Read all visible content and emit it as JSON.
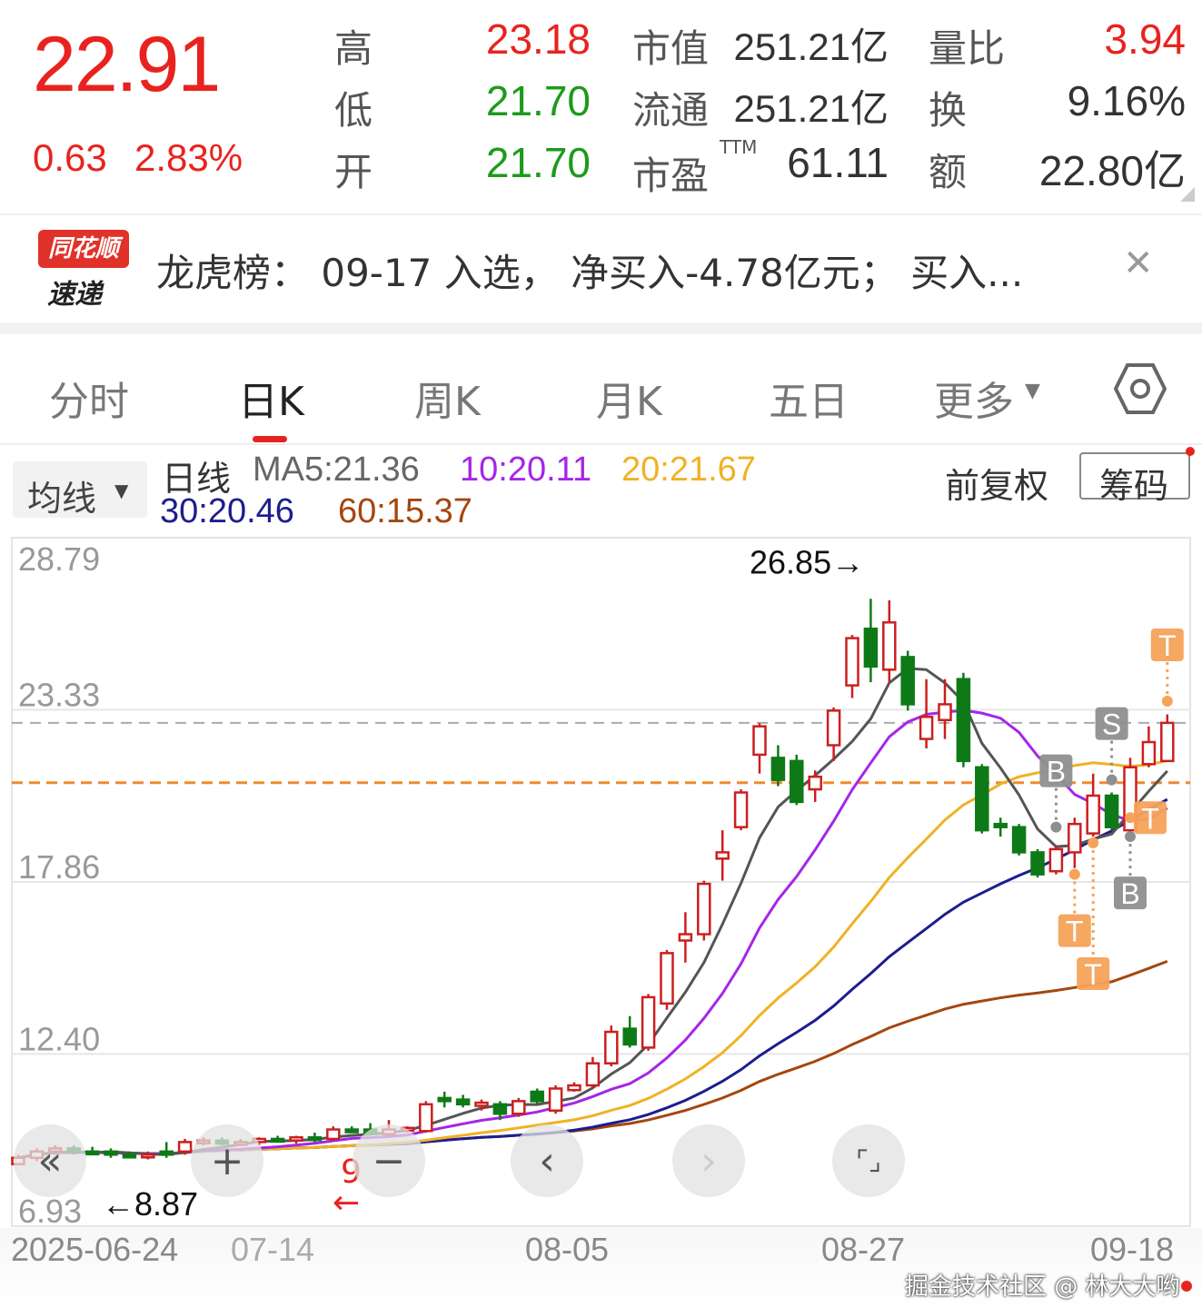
{
  "quote": {
    "price": "22.91",
    "change": "0.63",
    "change_pct": "2.83%",
    "stats": [
      {
        "label": "高",
        "value": "23.18",
        "color": "red"
      },
      {
        "label": "低",
        "value": "21.70",
        "color": "green"
      },
      {
        "label": "开",
        "value": "21.70",
        "color": "green"
      }
    ],
    "stats2": [
      {
        "label": "市值",
        "value": "251.21亿"
      },
      {
        "label": "流通",
        "value": "251.21亿"
      },
      {
        "label": "市盈",
        "sup": "TTM",
        "value": "61.11"
      }
    ],
    "stats3": [
      {
        "label": "量比",
        "value": "3.94",
        "color": "red"
      },
      {
        "label": "换",
        "value": "9.16%",
        "color": "dark"
      },
      {
        "label": "额",
        "value": "22.80亿",
        "color": "dark"
      }
    ]
  },
  "banner": {
    "logo_top": "同花顺",
    "logo_bottom": "速递",
    "text": "龙虎榜：  09-17 入选，  净买入-4.78亿元；  买入...",
    "close_icon": "close-icon"
  },
  "tabs": [
    {
      "label": "分时"
    },
    {
      "label": "日K",
      "active": true
    },
    {
      "label": "周K"
    },
    {
      "label": "月K"
    },
    {
      "label": "五日"
    },
    {
      "label": "更多"
    }
  ],
  "settings_icon": "hexagon-settings-icon",
  "legend": {
    "dropdown": "均线",
    "title": "日线",
    "ma5": "MA5:21.36",
    "ma10": "10:20.11",
    "ma20": "20:21.67",
    "ma30": "30:20.46",
    "ma60": "60:15.37",
    "adjust": "前复权",
    "chips": "筹码"
  },
  "colors": {
    "up": "#cc1f1f",
    "down": "#0e7a17",
    "ma5": "#555555",
    "ma10": "#a526e8",
    "ma20": "#f0b224",
    "ma30": "#1d1d8f",
    "ma60": "#a4470f",
    "accent": "#e8231f",
    "marker": "#f6a25a",
    "marker_gray": "#8f8f8f"
  },
  "chart_data": {
    "type": "candlestick",
    "y_ticks": [
      "28.79",
      "23.33",
      "17.86",
      "12.40",
      "6.93"
    ],
    "ylim": [
      6.93,
      28.79
    ],
    "x_ticks": [
      "2025-06-24",
      "07-14",
      "08-05",
      "08-27",
      "09-18"
    ],
    "max_label": "26.85→",
    "min_label": "←8.87",
    "current_price_line": 22.91,
    "cost_line": 21.01,
    "annotation": {
      "text": "9",
      "arrow": "←"
    },
    "candles": [
      [
        "06-24",
        8.9,
        9.2,
        8.87,
        9.1
      ],
      [
        "06-25",
        9.1,
        9.4,
        9.0,
        9.3
      ],
      [
        "06-26",
        9.3,
        9.5,
        9.2,
        9.4
      ],
      [
        "06-27",
        9.4,
        9.5,
        9.2,
        9.3
      ],
      [
        "06-30",
        9.3,
        9.45,
        9.2,
        9.25
      ],
      [
        "07-01",
        9.3,
        9.4,
        9.1,
        9.2
      ],
      [
        "07-02",
        9.2,
        9.3,
        9.1,
        9.15
      ],
      [
        "07-03",
        9.15,
        9.3,
        9.05,
        9.2
      ],
      [
        "07-04",
        9.3,
        9.6,
        9.1,
        9.2
      ],
      [
        "07-07",
        9.3,
        9.7,
        9.2,
        9.6
      ],
      [
        "07-08",
        9.6,
        9.75,
        9.5,
        9.65
      ],
      [
        "07-09",
        9.65,
        9.75,
        9.5,
        9.55
      ],
      [
        "07-10",
        9.55,
        9.7,
        9.5,
        9.6
      ],
      [
        "07-11",
        9.6,
        9.75,
        9.5,
        9.7
      ],
      [
        "07-14",
        9.7,
        9.8,
        9.6,
        9.65
      ],
      [
        "07-15",
        9.65,
        9.8,
        9.55,
        9.75
      ],
      [
        "07-16",
        9.75,
        9.9,
        9.6,
        9.7
      ],
      [
        "07-17",
        9.7,
        10.1,
        9.65,
        10.0
      ],
      [
        "07-18",
        10.0,
        10.1,
        9.9,
        9.95
      ],
      [
        "07-21",
        10.0,
        10.2,
        9.8,
        9.85
      ],
      [
        "07-22",
        9.85,
        10.3,
        9.8,
        10.0
      ],
      [
        "07-23",
        10.0,
        10.1,
        9.9,
        10.05
      ],
      [
        "07-24",
        9.95,
        10.9,
        9.9,
        10.8
      ],
      [
        "07-25",
        11.0,
        11.2,
        10.7,
        10.9
      ],
      [
        "07-28",
        10.95,
        11.1,
        10.7,
        10.8
      ],
      [
        "07-29",
        10.75,
        10.95,
        10.6,
        10.85
      ],
      [
        "07-30",
        10.8,
        10.9,
        10.3,
        10.5
      ],
      [
        "07-31",
        10.5,
        11.0,
        10.4,
        10.9
      ],
      [
        "08-01",
        11.2,
        11.3,
        10.8,
        10.9
      ],
      [
        "08-04",
        10.6,
        11.4,
        10.5,
        11.3
      ],
      [
        "08-05",
        11.25,
        11.5,
        11.2,
        11.4
      ],
      [
        "08-06",
        11.4,
        12.3,
        11.3,
        12.1
      ],
      [
        "08-07",
        12.1,
        13.3,
        12.0,
        13.1
      ],
      [
        "08-08",
        13.2,
        13.6,
        12.6,
        12.7
      ],
      [
        "08-11",
        12.6,
        14.3,
        12.5,
        14.2
      ],
      [
        "08-12",
        14.0,
        15.7,
        13.8,
        15.6
      ],
      [
        "08-13",
        16.0,
        16.9,
        15.3,
        16.2
      ],
      [
        "08-14",
        16.2,
        17.9,
        16.0,
        17.8
      ],
      [
        "08-15",
        18.6,
        19.5,
        17.9,
        18.8
      ],
      [
        "08-18",
        19.6,
        20.8,
        19.5,
        20.7
      ],
      [
        "08-19",
        21.9,
        22.9,
        21.3,
        22.8
      ],
      [
        "08-20",
        21.8,
        22.2,
        20.9,
        21.1
      ],
      [
        "08-21",
        21.7,
        21.9,
        20.3,
        20.4
      ],
      [
        "08-22",
        20.8,
        21.4,
        20.4,
        21.2
      ],
      [
        "08-25",
        22.2,
        23.4,
        21.7,
        23.3
      ],
      [
        "08-26",
        24.1,
        25.7,
        23.7,
        25.6
      ],
      [
        "08-27",
        25.9,
        26.85,
        24.2,
        24.7
      ],
      [
        "08-28",
        24.6,
        26.8,
        24.2,
        26.1
      ],
      [
        "08-29",
        25.0,
        25.2,
        23.3,
        23.5
      ],
      [
        "09-01",
        22.4,
        24.3,
        22.1,
        23.1
      ],
      [
        "09-02",
        23.0,
        24.3,
        22.4,
        23.5
      ],
      [
        "09-03",
        24.3,
        24.5,
        21.5,
        21.7
      ],
      [
        "09-04",
        21.5,
        21.6,
        19.4,
        19.5
      ],
      [
        "09-05",
        19.7,
        19.9,
        19.3,
        19.6
      ],
      [
        "09-08",
        19.6,
        19.7,
        18.7,
        18.8
      ],
      [
        "09-09",
        18.8,
        18.9,
        18.0,
        18.1
      ],
      [
        "09-10",
        18.2,
        19.0,
        18.1,
        18.9
      ],
      [
        "09-11",
        18.8,
        19.9,
        18.3,
        19.7
      ],
      [
        "09-12",
        19.4,
        21.3,
        19.3,
        20.6
      ],
      [
        "09-15",
        20.6,
        20.7,
        19.5,
        19.6
      ],
      [
        "09-16",
        19.5,
        21.8,
        19.4,
        21.5
      ],
      [
        "09-17",
        21.6,
        22.8,
        21.5,
        22.3
      ],
      [
        "09-18",
        21.7,
        23.18,
        21.7,
        22.91
      ]
    ],
    "markers": [
      {
        "date": "09-10",
        "label": "B",
        "kind": "gray",
        "price": 19.6,
        "side": "above"
      },
      {
        "date": "09-11",
        "label": "T",
        "kind": "orange",
        "price": 18.1,
        "side": "below"
      },
      {
        "date": "09-12",
        "label": "T",
        "kind": "orange",
        "price": 19.1,
        "side": "below"
      },
      {
        "date": "09-15",
        "label": "S",
        "kind": "gray",
        "price": 21.1,
        "side": "above"
      },
      {
        "date": "09-16",
        "label": "B",
        "kind": "gray",
        "price": 19.3,
        "side": "below"
      },
      {
        "date": "09-16",
        "label": "T",
        "kind": "orange",
        "price": 19.9,
        "side": "right"
      },
      {
        "date": "09-18",
        "label": "T",
        "kind": "orange",
        "price": 23.6,
        "side": "above"
      }
    ]
  },
  "nav_buttons": [
    {
      "icon": "double-chevron-left-icon",
      "glyph": "«"
    },
    {
      "icon": "zoom-in-icon",
      "glyph": "+"
    },
    {
      "icon": "zoom-out-icon",
      "glyph": "−"
    },
    {
      "icon": "chevron-left-icon",
      "glyph": "‹"
    },
    {
      "icon": "chevron-right-icon",
      "glyph": "›"
    },
    {
      "icon": "fullscreen-icon",
      "glyph": "⌜⌟"
    }
  ],
  "watermark": "掘金技术社区 @ 林大大哟"
}
